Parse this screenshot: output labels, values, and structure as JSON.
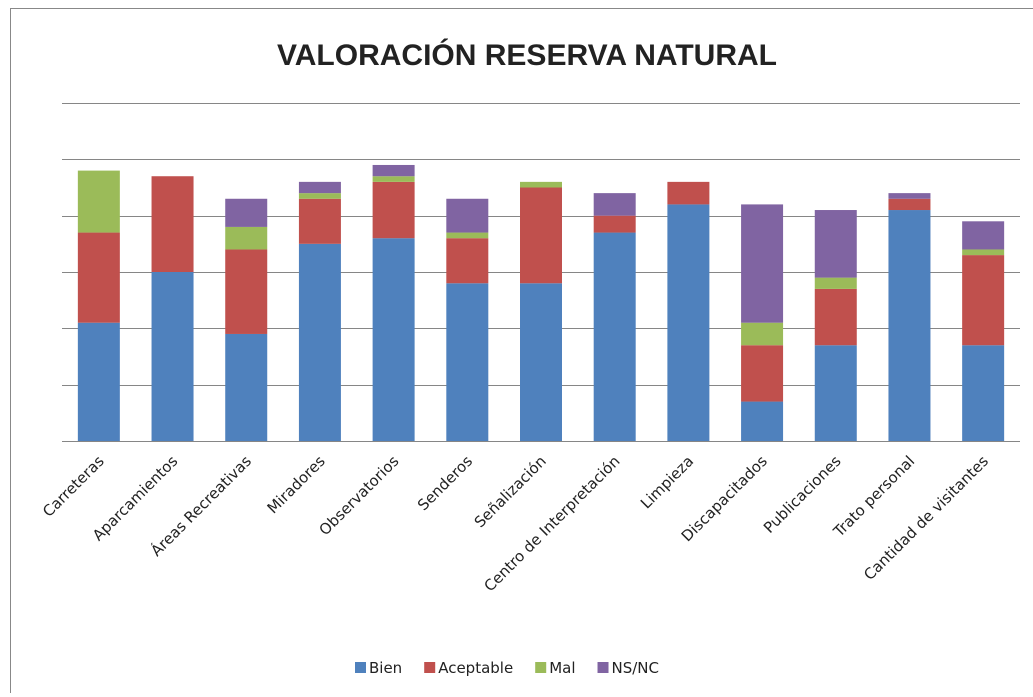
{
  "chart_data": {
    "type": "stacked_bar",
    "title": "VALORACIÓN RESERVA NATURAL",
    "categories": [
      "Carreteras",
      "Aparcamientos",
      "Áreas Recreativas",
      "Miradores",
      "Observatorios",
      "Senderos",
      "Señalización",
      "Centro de Interpretación",
      "Limpieza",
      "Discapacitados",
      "Publicaciones",
      "Trato personal",
      "Cantidad de visitantes"
    ],
    "series": [
      {
        "name": "Bien",
        "color": "#4f81bd",
        "values": [
          21,
          30,
          19,
          35,
          36,
          28,
          28,
          37,
          42,
          7,
          17,
          41,
          17
        ]
      },
      {
        "name": "Aceptable",
        "color": "#c0504d",
        "values": [
          16,
          17,
          15,
          8,
          10,
          8,
          17,
          3,
          4,
          10,
          10,
          2,
          16
        ]
      },
      {
        "name": "Mal",
        "color": "#9bbb59",
        "values": [
          11,
          0,
          4,
          1,
          1,
          1,
          1,
          0,
          0,
          4,
          2,
          0,
          1
        ]
      },
      {
        "name": "NS/NC",
        "color": "#8064a2",
        "values": [
          0,
          0,
          5,
          2,
          2,
          6,
          0,
          4,
          0,
          21,
          12,
          1,
          5
        ]
      }
    ],
    "ylim": [
      0,
      60
    ],
    "yticks": [
      0,
      10,
      20,
      30,
      40,
      50,
      60
    ],
    "grid": true,
    "legend": "bottom"
  }
}
